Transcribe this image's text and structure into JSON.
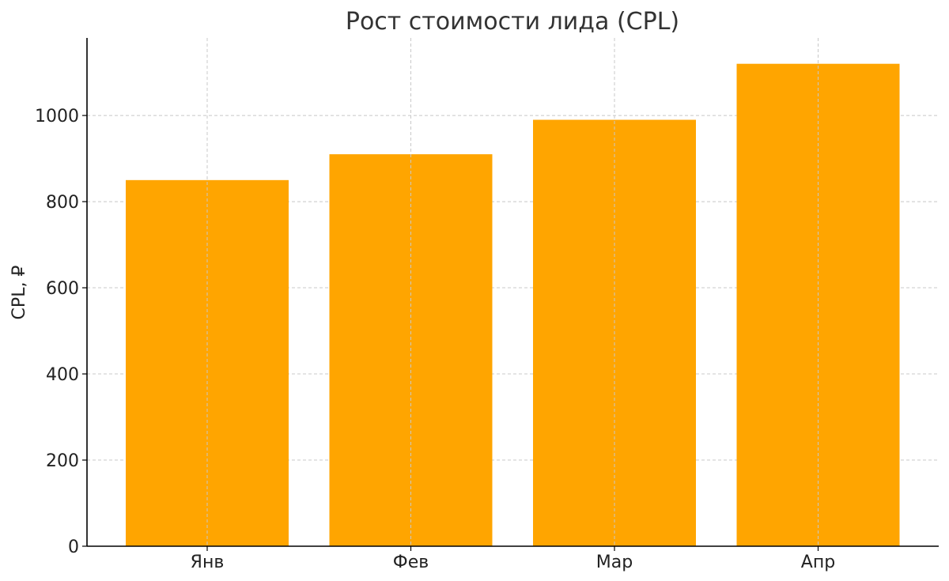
{
  "chart_data": {
    "type": "bar",
    "title": "Рост стоимости лида (CPL)",
    "xlabel": "",
    "ylabel": "CPL, ₽",
    "categories": [
      "Янв",
      "Фев",
      "Мар",
      "Апр"
    ],
    "values": [
      850,
      910,
      990,
      1120
    ],
    "ylim": [
      0,
      1180
    ],
    "yticks": [
      0,
      200,
      400,
      600,
      800,
      1000
    ],
    "grid": true,
    "bar_color": "#FFA500"
  }
}
